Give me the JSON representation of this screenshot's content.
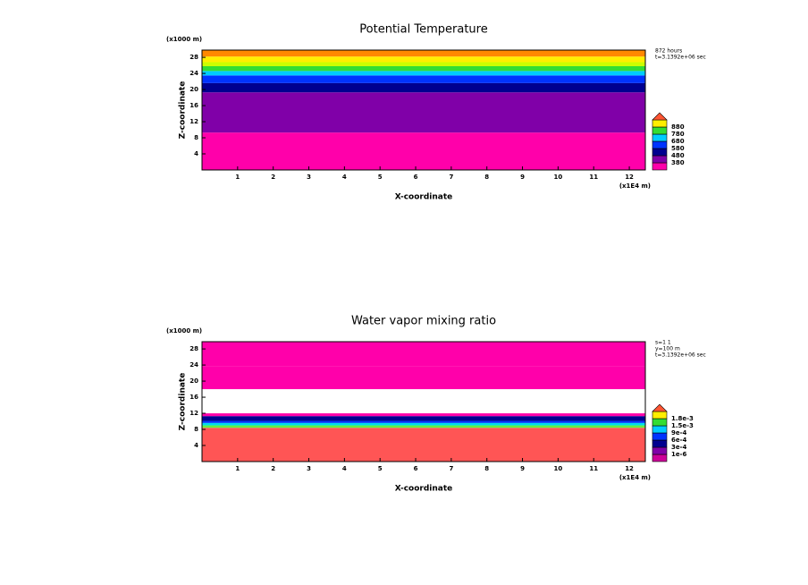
{
  "chart_data": [
    {
      "type": "contour",
      "title": "Potential Temperature",
      "x_label": "X-coordinate",
      "y_label": "Z-coordinate",
      "x_unit": "(x1E4 m)",
      "y_unit": "(x1000 m)",
      "info": [
        "872 hours",
        "t=3.1392e+06 sec"
      ],
      "xlim": [
        0,
        12.45
      ],
      "ylim": [
        0,
        29.8
      ],
      "xticks": [
        1,
        2,
        3,
        4,
        5,
        6,
        7,
        8,
        9,
        10,
        11,
        12
      ],
      "yticks": [
        4,
        8,
        12,
        16,
        20,
        24,
        28
      ],
      "bands": {
        "edges": [
          0,
          9.3,
          19.3,
          21.6,
          23.5,
          24.6,
          25.8,
          26.8,
          28.2,
          29.8
        ],
        "colors": [
          "#ff00aa",
          "#8000a8",
          "#000090",
          "#0033ff",
          "#00ccff",
          "#33dd33",
          "#ccff00",
          "#ffee00",
          "#ff8800"
        ]
      },
      "legend": {
        "labels": [
          380,
          480,
          580,
          680,
          780,
          880
        ],
        "colors": [
          "#ff00aa",
          "#8000a8",
          "#000090",
          "#0033ff",
          "#00ccff",
          "#33dd33",
          "#ffee00"
        ],
        "over_color": "#ff5533"
      }
    },
    {
      "type": "contour",
      "title": "Water vapor mixing ratio",
      "x_label": "X-coordinate",
      "y_label": "Z-coordinate",
      "x_unit": "(x1E4 m)",
      "y_unit": "(x1000 m)",
      "info": [
        "s=1 1",
        "y=100 m",
        "t=3.1392e+06 sec"
      ],
      "xlim": [
        0,
        12.45
      ],
      "ylim": [
        0,
        29.8
      ],
      "xticks": [
        1,
        2,
        3,
        4,
        5,
        6,
        7,
        8,
        9,
        10,
        11,
        12
      ],
      "yticks": [
        4,
        8,
        12,
        16,
        20,
        24,
        28
      ],
      "bands": {
        "edges": [
          0,
          8.4,
          9.0,
          9.6,
          10.1,
          11.3,
          12.0,
          18.0,
          23.6,
          29.8
        ],
        "colors": [
          "#ff5555",
          "#66ee44",
          "#00ddee",
          "#0033ff",
          "#000090",
          "#ff00aa",
          "#ffffff",
          "#ff00aa",
          "#ff00aa"
        ]
      },
      "legend": {
        "labels": [
          "1e-6",
          "3e-4",
          "6e-4",
          "9e-4",
          "1.5e-3",
          "1.8e-3"
        ],
        "colors": [
          "#cc0099",
          "#8000a8",
          "#000090",
          "#0033ff",
          "#00ccff",
          "#33dd33",
          "#ffee00"
        ],
        "over_color": "#ff5533"
      }
    }
  ]
}
